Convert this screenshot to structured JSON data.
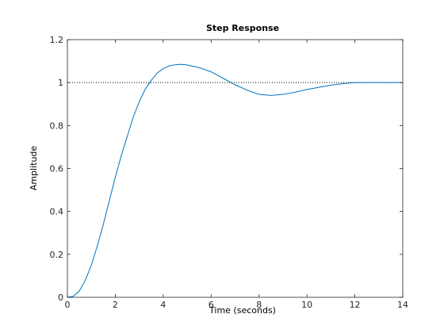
{
  "chart_data": {
    "type": "line",
    "title": "Step Response",
    "xlabel": "Time (seconds)",
    "ylabel": "Amplitude",
    "xlim": [
      0,
      14
    ],
    "ylim": [
      0,
      1.2
    ],
    "xticks": [
      0,
      2,
      4,
      6,
      8,
      10,
      12,
      14
    ],
    "yticks": [
      0,
      0.2,
      0.4,
      0.6,
      0.8,
      1,
      1.2
    ],
    "grid": false,
    "reference_line": {
      "y": 1,
      "style": "dotted"
    },
    "series": [
      {
        "x": [
          0,
          0.25,
          0.5,
          0.75,
          1,
          1.25,
          1.5,
          1.75,
          2,
          2.25,
          2.5,
          2.75,
          3,
          3.25,
          3.5,
          3.75,
          4,
          4.25,
          4.5,
          4.75,
          5,
          5.5,
          6,
          6.5,
          7,
          7.5,
          8,
          8.5,
          9,
          9.5,
          10,
          10.5,
          11,
          11.5,
          12,
          12.5,
          13,
          13.5,
          14
        ],
        "y": [
          0,
          0.005,
          0.03,
          0.08,
          0.15,
          0.24,
          0.34,
          0.45,
          0.56,
          0.66,
          0.75,
          0.84,
          0.91,
          0.97,
          1.01,
          1.045,
          1.065,
          1.078,
          1.083,
          1.085,
          1.082,
          1.07,
          1.05,
          1.02,
          0.99,
          0.965,
          0.945,
          0.94,
          0.945,
          0.955,
          0.968,
          0.978,
          0.988,
          0.995,
          1.0,
          1.0,
          1.0,
          1.0,
          1.0
        ]
      }
    ],
    "colors": {
      "line": "#0072bd",
      "axes": "#262626",
      "reference": "#000000"
    }
  }
}
